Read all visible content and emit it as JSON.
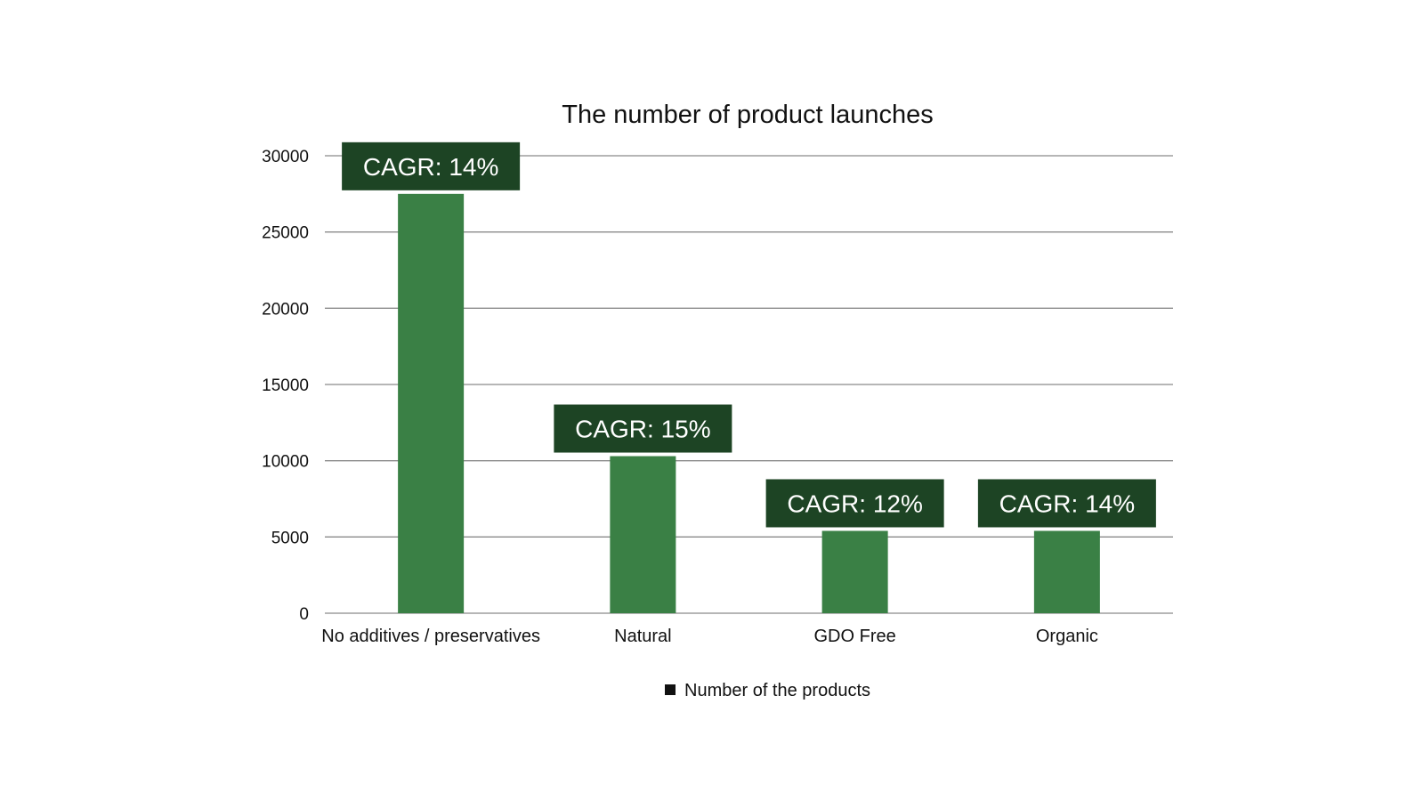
{
  "chart_data": {
    "type": "bar",
    "title": "The number of product launches",
    "categories": [
      "No additives / preservatives",
      "Natural",
      "GDO Free",
      "Organic"
    ],
    "series": [
      {
        "name": "Number of the products",
        "values": [
          27500,
          10300,
          5400,
          5400
        ]
      }
    ],
    "annotations": [
      "CAGR: 14%",
      "CAGR: 15%",
      "CAGR: 12%",
      "CAGR: 14%"
    ],
    "yticks": [
      0,
      5000,
      10000,
      15000,
      20000,
      25000,
      30000
    ],
    "ylim": [
      0,
      30000
    ],
    "grid": true,
    "legend": "bottom",
    "colors": {
      "bar": "#3a8045",
      "label_box": "#1d4424",
      "label_text": "#ffffff",
      "grid": "#8a8a8a"
    }
  }
}
